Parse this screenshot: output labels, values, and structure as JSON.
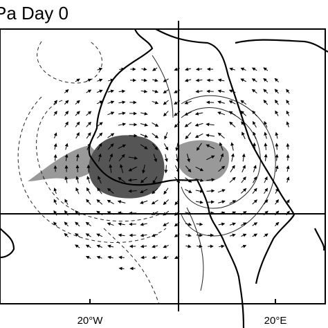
{
  "map": {
    "title": "Pa Day 0",
    "x_labels": [
      "20°W",
      "20°E"
    ]
  }
}
